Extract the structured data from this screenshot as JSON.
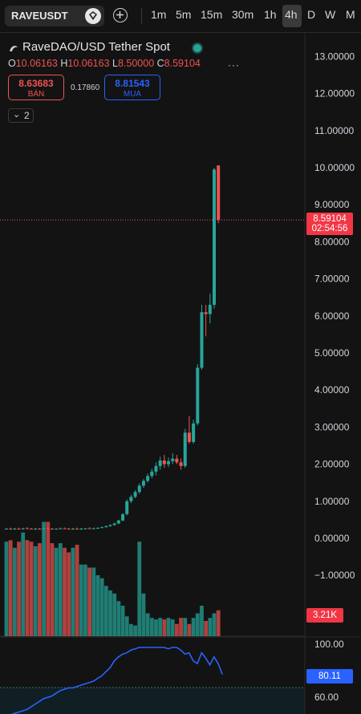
{
  "toolbar": {
    "symbol": "RAVEUSDT",
    "timeframes": [
      "1m",
      "5m",
      "15m",
      "30m",
      "1h",
      "4h",
      "D",
      "W",
      "M"
    ],
    "active_timeframe": "4h"
  },
  "legend": {
    "title": "RaveDAO/USD Tether Spot",
    "status_color": "#26a69a",
    "ohlc": {
      "o_key": "O",
      "o": "10.06163",
      "h_key": "H",
      "h": "10.06163",
      "l_key": "L",
      "l": "8.50000",
      "c_key": "C",
      "c": "8.59104"
    },
    "more": "···"
  },
  "orders": {
    "sell_price": "8.63683",
    "sell_label": "BÁN",
    "spread": "0.17860",
    "buy_price": "8.81543",
    "buy_label": "MUA"
  },
  "indicators_toggle": {
    "count": "2"
  },
  "price_scale": {
    "labels": [
      "13.00000",
      "12.00000",
      "11.00000",
      "10.00000",
      "9.00000",
      "8.00000",
      "7.00000",
      "6.00000",
      "5.00000",
      "4.00000",
      "3.00000",
      "2.00000",
      "1.00000",
      "0.00000",
      "−1.00000"
    ]
  },
  "last_price": {
    "price": "8.59104",
    "countdown": "02:54:56"
  },
  "volume": {
    "last": "3.21K"
  },
  "rsi": {
    "value": "80.11",
    "labels": [
      "100.00",
      "60.00"
    ]
  },
  "colors": {
    "up": "#26a69a",
    "down": "#ef5350",
    "rsi_line": "#2962ff",
    "background": "#131313"
  },
  "chart_data": {
    "type": "candlestick",
    "title": "RaveDAO/USD Tether Spot",
    "interval": "4h",
    "y_range": [
      -1.5,
      13.5
    ],
    "candles": [
      {
        "o": 0.25,
        "h": 0.28,
        "l": 0.24,
        "c": 0.26,
        "v": 0.62
      },
      {
        "o": 0.26,
        "h": 0.29,
        "l": 0.24,
        "c": 0.25,
        "v": 0.63
      },
      {
        "o": 0.25,
        "h": 0.28,
        "l": 0.23,
        "c": 0.26,
        "v": 0.58
      },
      {
        "o": 0.26,
        "h": 0.29,
        "l": 0.24,
        "c": 0.25,
        "v": 0.62
      },
      {
        "o": 0.25,
        "h": 0.28,
        "l": 0.23,
        "c": 0.27,
        "v": 0.68
      },
      {
        "o": 0.27,
        "h": 0.3,
        "l": 0.25,
        "c": 0.26,
        "v": 0.63
      },
      {
        "o": 0.26,
        "h": 0.28,
        "l": 0.24,
        "c": 0.25,
        "v": 0.62
      },
      {
        "o": 0.25,
        "h": 0.28,
        "l": 0.23,
        "c": 0.26,
        "v": 0.59
      },
      {
        "o": 0.26,
        "h": 0.28,
        "l": 0.24,
        "c": 0.25,
        "v": 0.61
      },
      {
        "o": 0.25,
        "h": 0.28,
        "l": 0.23,
        "c": 0.27,
        "v": 0.75
      },
      {
        "o": 0.27,
        "h": 0.29,
        "l": 0.25,
        "c": 0.26,
        "v": 0.75
      },
      {
        "o": 0.26,
        "h": 0.28,
        "l": 0.24,
        "c": 0.25,
        "v": 0.61
      },
      {
        "o": 0.25,
        "h": 0.27,
        "l": 0.23,
        "c": 0.26,
        "v": 0.58
      },
      {
        "o": 0.26,
        "h": 0.29,
        "l": 0.24,
        "c": 0.27,
        "v": 0.61
      },
      {
        "o": 0.27,
        "h": 0.29,
        "l": 0.25,
        "c": 0.26,
        "v": 0.58
      },
      {
        "o": 0.26,
        "h": 0.28,
        "l": 0.24,
        "c": 0.25,
        "v": 0.55
      },
      {
        "o": 0.25,
        "h": 0.28,
        "l": 0.23,
        "c": 0.26,
        "v": 0.58
      },
      {
        "o": 0.26,
        "h": 0.29,
        "l": 0.24,
        "c": 0.25,
        "v": 0.6
      },
      {
        "o": 0.25,
        "h": 0.28,
        "l": 0.23,
        "c": 0.26,
        "v": 0.47
      },
      {
        "o": 0.26,
        "h": 0.28,
        "l": 0.24,
        "c": 0.27,
        "v": 0.47
      },
      {
        "o": 0.27,
        "h": 0.3,
        "l": 0.25,
        "c": 0.26,
        "v": 0.45
      },
      {
        "o": 0.26,
        "h": 0.29,
        "l": 0.24,
        "c": 0.27,
        "v": 0.45
      },
      {
        "o": 0.27,
        "h": 0.3,
        "l": 0.26,
        "c": 0.28,
        "v": 0.4
      },
      {
        "o": 0.28,
        "h": 0.32,
        "l": 0.27,
        "c": 0.3,
        "v": 0.38
      },
      {
        "o": 0.3,
        "h": 0.34,
        "l": 0.29,
        "c": 0.33,
        "v": 0.33
      },
      {
        "o": 0.33,
        "h": 0.38,
        "l": 0.31,
        "c": 0.36,
        "v": 0.3
      },
      {
        "o": 0.36,
        "h": 0.42,
        "l": 0.34,
        "c": 0.4,
        "v": 0.28
      },
      {
        "o": 0.4,
        "h": 0.5,
        "l": 0.38,
        "c": 0.48,
        "v": 0.23
      },
      {
        "o": 0.48,
        "h": 0.68,
        "l": 0.46,
        "c": 0.65,
        "v": 0.2
      },
      {
        "o": 0.65,
        "h": 1.05,
        "l": 0.62,
        "c": 1.0,
        "v": 0.13
      },
      {
        "o": 1.0,
        "h": 1.18,
        "l": 0.95,
        "c": 1.12,
        "v": 0.08
      },
      {
        "o": 1.12,
        "h": 1.3,
        "l": 1.08,
        "c": 1.25,
        "v": 0.07
      },
      {
        "o": 1.25,
        "h": 1.48,
        "l": 1.2,
        "c": 1.42,
        "v": 0.62
      },
      {
        "o": 1.42,
        "h": 1.6,
        "l": 1.36,
        "c": 1.55,
        "v": 0.28
      },
      {
        "o": 1.55,
        "h": 1.75,
        "l": 1.5,
        "c": 1.68,
        "v": 0.15
      },
      {
        "o": 1.68,
        "h": 1.88,
        "l": 1.62,
        "c": 1.8,
        "v": 0.12
      },
      {
        "o": 1.8,
        "h": 2.05,
        "l": 1.7,
        "c": 1.95,
        "v": 0.11
      },
      {
        "o": 1.95,
        "h": 2.2,
        "l": 1.85,
        "c": 2.1,
        "v": 0.12
      },
      {
        "o": 2.1,
        "h": 2.25,
        "l": 1.9,
        "c": 2.0,
        "v": 0.11
      },
      {
        "o": 2.0,
        "h": 2.18,
        "l": 1.92,
        "c": 2.08,
        "v": 0.12
      },
      {
        "o": 2.08,
        "h": 2.3,
        "l": 2.0,
        "c": 2.15,
        "v": 0.11
      },
      {
        "o": 2.15,
        "h": 2.25,
        "l": 2.0,
        "c": 2.05,
        "v": 0.08
      },
      {
        "o": 2.05,
        "h": 2.15,
        "l": 1.85,
        "c": 1.95,
        "v": 0.12
      },
      {
        "o": 1.95,
        "h": 2.95,
        "l": 1.9,
        "c": 2.85,
        "v": 0.12
      },
      {
        "o": 2.85,
        "h": 3.3,
        "l": 2.55,
        "c": 2.6,
        "v": 0.08
      },
      {
        "o": 2.6,
        "h": 3.2,
        "l": 2.55,
        "c": 3.1,
        "v": 0.12
      },
      {
        "o": 3.1,
        "h": 4.7,
        "l": 3.05,
        "c": 4.6,
        "v": 0.15
      },
      {
        "o": 4.6,
        "h": 6.3,
        "l": 4.55,
        "c": 6.1,
        "v": 0.2
      },
      {
        "o": 6.1,
        "h": 6.3,
        "l": 5.45,
        "c": 6.05,
        "v": 0.1
      },
      {
        "o": 6.05,
        "h": 6.6,
        "l": 5.8,
        "c": 6.3,
        "v": 0.12
      },
      {
        "o": 6.3,
        "h": 10.0,
        "l": 6.2,
        "c": 9.95,
        "v": 0.15
      },
      {
        "o": 10.06,
        "h": 10.06,
        "l": 8.5,
        "c": 8.59,
        "v": 0.17
      }
    ],
    "rsi_values": [
      50,
      51,
      52,
      53,
      54,
      56,
      58,
      60,
      62,
      63,
      64,
      66,
      68,
      69,
      70,
      70,
      71,
      72,
      73,
      74,
      75,
      77,
      79,
      82,
      85,
      90,
      93,
      95,
      96,
      98,
      99,
      100,
      100,
      100,
      100,
      100,
      100,
      100,
      99,
      100,
      100,
      98,
      95,
      96,
      90,
      88,
      96,
      92,
      87,
      93,
      88,
      80
    ]
  }
}
